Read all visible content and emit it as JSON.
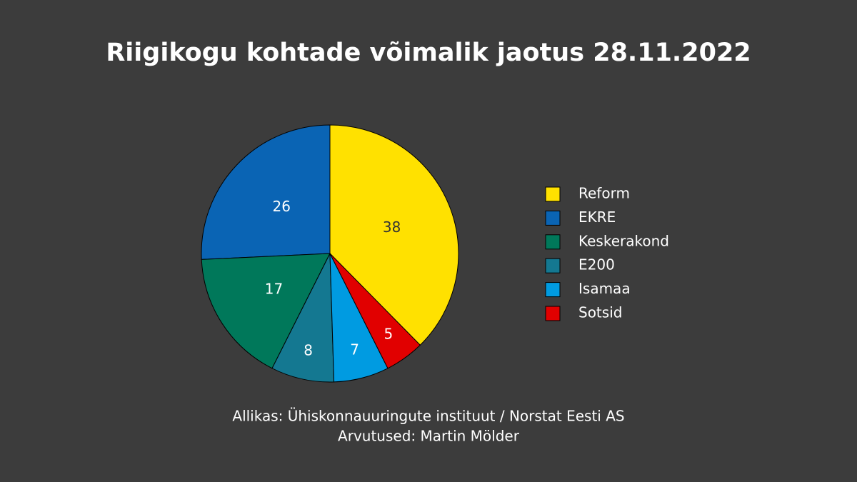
{
  "chart_data": {
    "type": "pie",
    "title": "Riigikogu kohtade võimalik jaotus 28.11.2022",
    "categories": [
      "Reform",
      "EKRE",
      "Keskerakond",
      "E200",
      "Isamaa",
      "Sotsid"
    ],
    "values": [
      38,
      26,
      17,
      8,
      7,
      5
    ],
    "colors": [
      "#ffe100",
      "#0a64b4",
      "#00785a",
      "#147891",
      "#009be1",
      "#e10000"
    ],
    "source": [
      "Allikas: Ühiskonnauuringute instituut / Norstat Eesti AS",
      "Arvutused: Martin Mölder"
    ]
  }
}
